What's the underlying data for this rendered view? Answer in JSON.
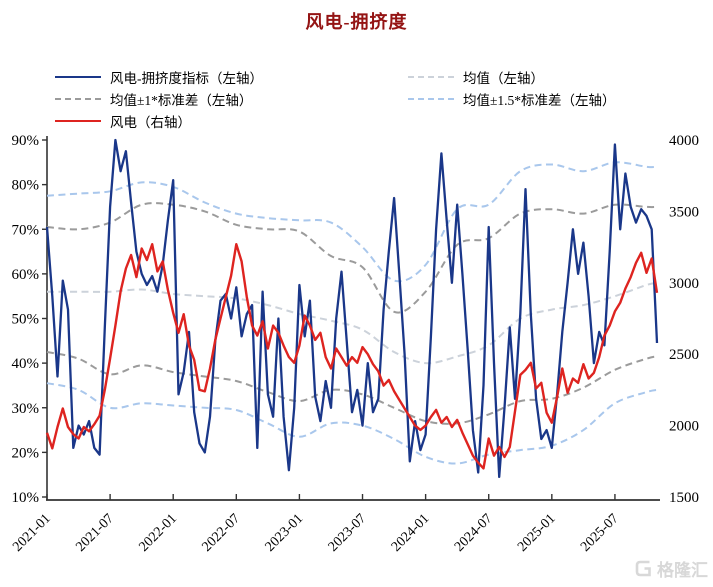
{
  "title": "风电-拥挤度",
  "watermark": "格隆汇",
  "chart_data": {
    "type": "line",
    "title": "风电-拥挤度",
    "x_axis": {
      "start": "2021-01",
      "end": "2025-10",
      "unit_months_per_point": 0.5,
      "tick_labels": [
        "2021-01",
        "2021-07",
        "2022-01",
        "2022-07",
        "2023-01",
        "2023-07",
        "2024-01",
        "2024-07",
        "2025-01",
        "2025-07"
      ],
      "tick_months": [
        0,
        6,
        12,
        18,
        24,
        30,
        36,
        42,
        48,
        54
      ]
    },
    "left_axis": {
      "min": 10,
      "max": 90,
      "tick_labels": [
        "90%",
        "80%",
        "70%",
        "60%",
        "50%",
        "40%",
        "30%",
        "20%",
        "10%"
      ],
      "tick_values": [
        90,
        80,
        70,
        60,
        50,
        40,
        30,
        20,
        10
      ]
    },
    "right_axis": {
      "min": 1500,
      "max": 4000,
      "tick_labels": [
        "4000",
        "3500",
        "3000",
        "2500",
        "2000",
        "1500"
      ],
      "tick_values": [
        4000,
        3500,
        3000,
        2500,
        2000,
        1500
      ]
    },
    "legend_position": "top, two columns",
    "grid": false,
    "band_knot_months": [
      0,
      3,
      6,
      9,
      12,
      15,
      18,
      21,
      24,
      27,
      30,
      33,
      36,
      39,
      42,
      45,
      48,
      51,
      54,
      57,
      58
    ],
    "series": {
      "crowding": {
        "label": "风电-拥挤度指标（左轴）",
        "axis": "left",
        "color": "#1a3789",
        "style": "solid",
        "start_month": 0,
        "step_months": 0.5,
        "values": [
          70.5,
          55,
          37,
          58.5,
          52,
          21,
          26,
          24,
          27,
          21,
          19.5,
          48,
          75,
          90,
          83,
          87.5,
          76,
          65,
          60,
          57.5,
          59.5,
          56,
          62,
          72,
          81,
          33,
          38,
          47,
          29,
          22,
          20,
          28,
          45,
          54,
          55.5,
          50,
          57,
          46,
          51,
          53,
          21,
          56,
          33,
          28,
          50,
          28,
          16,
          30,
          57.5,
          46,
          54,
          32.5,
          27,
          36,
          30,
          50,
          60.5,
          45,
          29,
          34,
          26,
          40,
          29,
          32,
          52,
          65,
          77,
          60,
          42,
          18,
          27,
          20.5,
          24,
          46,
          70,
          87,
          72,
          58,
          75.5,
          60,
          43,
          25,
          15.5,
          35,
          70.5,
          40,
          14.5,
          30,
          48,
          32,
          51,
          79,
          51,
          32,
          23,
          25,
          21,
          33,
          47,
          58,
          70,
          60,
          67,
          55,
          40,
          47,
          44,
          65,
          89,
          70,
          82.5,
          75,
          71.5,
          74.5,
          73,
          70,
          44.5
        ]
      },
      "wind": {
        "label": "风电（右轴）",
        "axis": "right",
        "color": "#de2420",
        "style": "solid",
        "start_month": 0,
        "step_months": 0.5,
        "values": [
          1950,
          1840,
          1990,
          2120,
          1990,
          1940,
          1910,
          1990,
          1960,
          2010,
          2070,
          2250,
          2470,
          2700,
          2940,
          3100,
          3195,
          3040,
          3240,
          3160,
          3270,
          3080,
          3150,
          2950,
          2790,
          2650,
          2780,
          2560,
          2460,
          2250,
          2240,
          2400,
          2600,
          2750,
          2900,
          3050,
          3270,
          3150,
          2900,
          2700,
          2630,
          2730,
          2540,
          2700,
          2650,
          2560,
          2480,
          2440,
          2560,
          2770,
          2700,
          2600,
          2650,
          2480,
          2400,
          2540,
          2480,
          2420,
          2480,
          2440,
          2550,
          2500,
          2430,
          2380,
          2280,
          2320,
          2240,
          2180,
          2120,
          2060,
          2000,
          1970,
          2000,
          2060,
          2110,
          2020,
          2060,
          1990,
          2040,
          1950,
          1870,
          1790,
          1740,
          1700,
          1910,
          1790,
          1850,
          1780,
          1850,
          2100,
          2355,
          2390,
          2440,
          2260,
          2300,
          2090,
          2020,
          2200,
          2400,
          2230,
          2330,
          2300,
          2430,
          2330,
          2370,
          2480,
          2630,
          2700,
          2800,
          2860,
          2960,
          3040,
          3140,
          3210,
          3070,
          3170,
          2930
        ]
      },
      "mean": {
        "label": "均值（左轴）",
        "axis": "left",
        "color": "#ccd2da",
        "style": "dashed",
        "values": [
          56,
          56,
          56,
          56.5,
          55.5,
          55,
          54.5,
          53,
          51,
          49.5,
          47.5,
          42.5,
          40,
          41.5,
          44,
          50,
          52,
          53,
          55,
          57.5,
          58
        ]
      },
      "std1": {
        "label": "均值±1*标准差（左轴）",
        "axis": "left",
        "color": "#9b9b9b",
        "style": "dashed",
        "upper": [
          70.5,
          70,
          71.5,
          75.5,
          75.5,
          74,
          71,
          70,
          69.5,
          64,
          61.5,
          51.5,
          56,
          66.5,
          68,
          73.5,
          74.5,
          73.5,
          75.5,
          75,
          75
        ],
        "lower": [
          42.5,
          41,
          37.5,
          39.5,
          38,
          37,
          36,
          33.5,
          31.5,
          34,
          33,
          30,
          27,
          26.5,
          28.5,
          31.5,
          32,
          34.5,
          38.5,
          41,
          41.5
        ]
      },
      "std15": {
        "label": "均值±1.5*标准差（左轴）",
        "axis": "left",
        "color": "#a9c7ec",
        "style": "dashed",
        "upper": [
          77.5,
          78,
          78.5,
          80.5,
          79.5,
          76,
          73.5,
          72.5,
          72,
          71.5,
          66,
          58.5,
          62,
          74.5,
          75.5,
          83,
          84.5,
          83,
          85,
          84,
          84
        ],
        "lower": [
          35.5,
          34,
          30,
          31,
          30.5,
          30,
          29.5,
          26.5,
          23.5,
          26.5,
          26,
          23,
          19,
          17.5,
          19.5,
          20.5,
          21.5,
          25,
          31,
          33.5,
          34
        ]
      }
    },
    "legend_columns": {
      "col1": [
        "crowding",
        "std1",
        "wind"
      ],
      "col2": [
        "mean",
        "std15"
      ]
    }
  }
}
